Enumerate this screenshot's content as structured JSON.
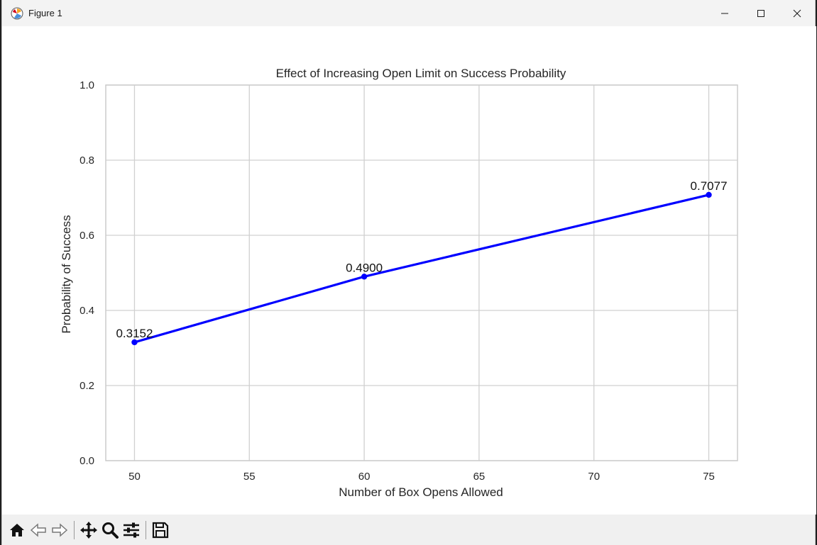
{
  "window": {
    "title": "Figure 1",
    "icons": [
      "figure-app-icon",
      "minimize-icon",
      "maximize-icon",
      "close-icon"
    ]
  },
  "toolbar": {
    "buttons": [
      "home-icon",
      "back-icon",
      "forward-icon",
      "pan-icon",
      "zoom-icon",
      "configure-subplots-icon",
      "save-icon"
    ]
  },
  "colors": {
    "line": "#0000ff",
    "grid": "#d0d0d0",
    "axes_frame": "#cccccc",
    "toolbar_bg": "#f0f0f0"
  },
  "chart_data": {
    "type": "line",
    "title": "Effect of Increasing Open Limit on Success Probability",
    "xlabel": "Number of Box Opens Allowed",
    "ylabel": "Probability of Success",
    "x": [
      50,
      60,
      75
    ],
    "series": [
      {
        "values": [
          0.3152,
          0.49,
          0.7077
        ],
        "labels": [
          "0.3152",
          "0.4900",
          "0.7077"
        ]
      }
    ],
    "xlim": [
      48.75,
      76.25
    ],
    "ylim": [
      0.0,
      1.0
    ],
    "xticks": [
      "50",
      "55",
      "60",
      "65",
      "70",
      "75"
    ],
    "yticks": [
      "0.0",
      "0.2",
      "0.4",
      "0.6",
      "0.8",
      "1.0"
    ],
    "grid": true,
    "markers": true
  }
}
